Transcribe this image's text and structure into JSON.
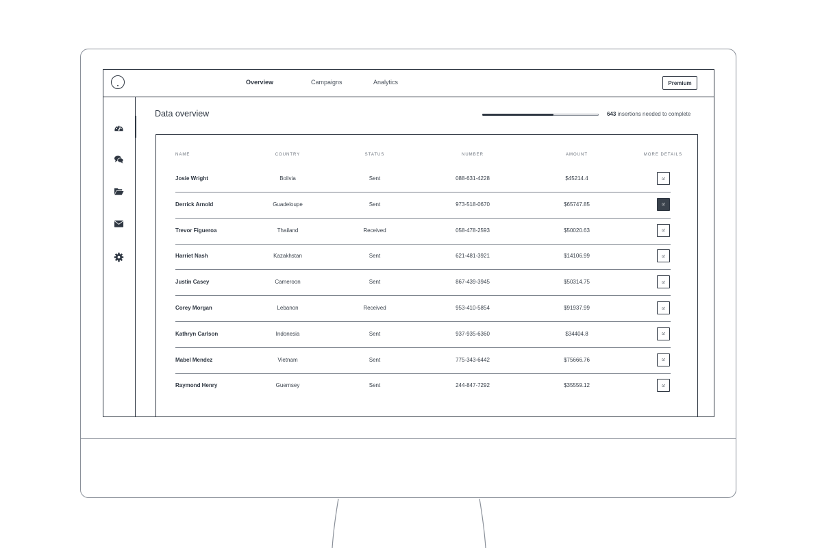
{
  "nav": {
    "items": [
      "Overview",
      "Campaigns",
      "Analytics"
    ],
    "active": "Overview",
    "premium_label": "Premium"
  },
  "sidebar": {
    "icons": [
      "dashboard-icon",
      "chat-icon",
      "folder-icon",
      "mail-icon",
      "settings-icon"
    ],
    "active": "dashboard-icon"
  },
  "main": {
    "title": "Data overview",
    "progress": {
      "count": "643",
      "text": "insertions needed to complete",
      "fraction": 0.61
    }
  },
  "table": {
    "headers": [
      "Name",
      "Country",
      "Status",
      "Number",
      "Amount",
      "More details"
    ],
    "rows": [
      {
        "name": "Josie Wright",
        "country": "Bolivia",
        "status": "Sent",
        "number": "088-631-4228",
        "amount": "$45214.4",
        "active": false
      },
      {
        "name": "Derrick Arnold",
        "country": "Guadeloupe",
        "status": "Sent",
        "number": "973-518-0670",
        "amount": "$65747.85",
        "active": true
      },
      {
        "name": "Trevor Figueroa",
        "country": "Thailand",
        "status": "Received",
        "number": "058-478-2593",
        "amount": "$50020.63",
        "active": false
      },
      {
        "name": "Harriet Nash",
        "country": "Kazakhstan",
        "status": "Sent",
        "number": "621-481-3921",
        "amount": "$14106.99",
        "active": false
      },
      {
        "name": "Justin Casey",
        "country": "Cameroon",
        "status": "Sent",
        "number": "867-439-3945",
        "amount": "$50314.75",
        "active": false
      },
      {
        "name": "Corey Morgan",
        "country": "Lebanon",
        "status": "Received",
        "number": "953-410-5854",
        "amount": "$91937.99",
        "active": false
      },
      {
        "name": "Kathryn Carlson",
        "country": "Indonesia",
        "status": "Sent",
        "number": "937-935-6360",
        "amount": "$34404.8",
        "active": false
      },
      {
        "name": "Mabel Mendez",
        "country": "Vietnam",
        "status": "Sent",
        "number": "775-343-6442",
        "amount": "$75666.76",
        "active": false
      },
      {
        "name": "Raymond Henry",
        "country": "Guernsey",
        "status": "Sent",
        "number": "244-847-7292",
        "amount": "$35559.12",
        "active": false
      }
    ]
  },
  "colors": {
    "ink": "#2f3742",
    "frame": "#8a9099",
    "active_button": "#3a424c"
  }
}
